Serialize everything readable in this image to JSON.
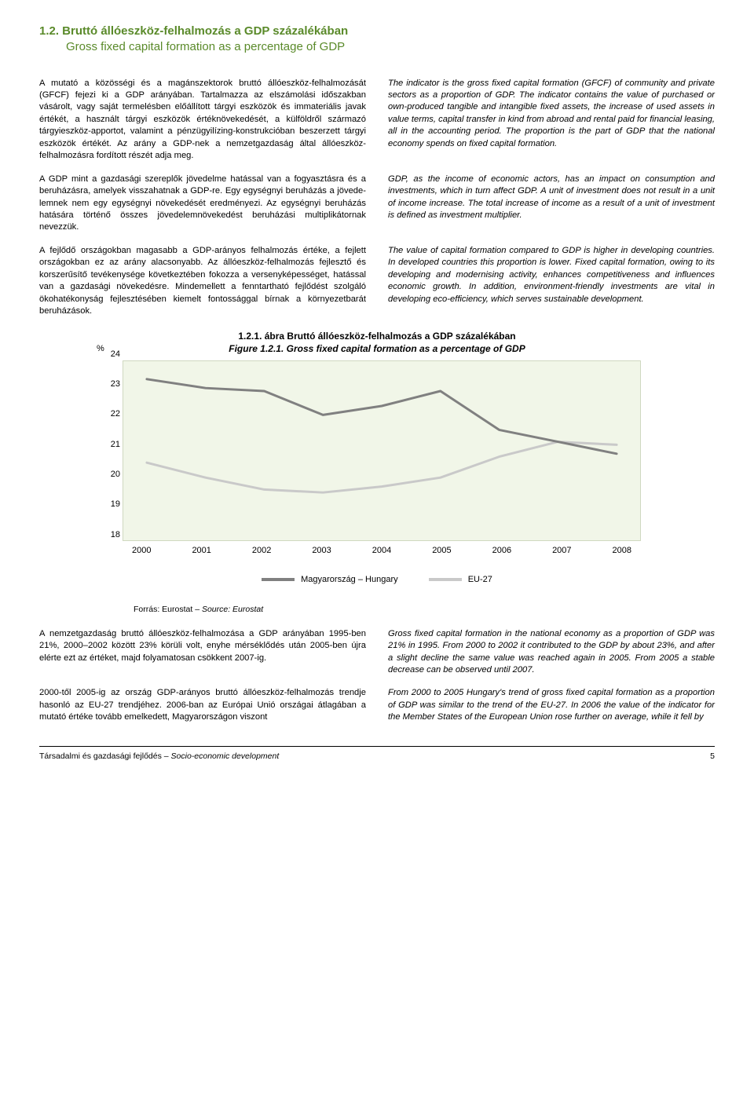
{
  "title": {
    "hu": "1.2.   Bruttó állóeszköz-felhalmozás a GDP százalékában",
    "en": "Gross fixed capital formation as a percentage of GDP"
  },
  "block1": {
    "hu": "A mutató a közösségi és a magánszektorok bruttó álló­eszköz-felhalmozását (GFCF) fejezi ki a GDP arányában. Tartalmazza az elszámolási időszakban vásárolt, vagy saját termelésben előállított tárgyi eszközök és immate­riális javak értékét, a használt tárgyi eszközök értéknöve­kedését, a külföldről származó tárgyieszköz-apportot, valamint a pénzügyilízing-konstrukcióban beszerzett tár­gyi eszközök értékét. Az arány a GDP-nek a nemzetgaz­daság által állóeszköz-felhalmozásra fordított részét adja meg.",
    "en": "The indicator is the gross fixed capital formation (GFCF) of community and private sectors as a proportion of GDP. The indicator contains the value of purchased or own-produced tan­gible and intangible fixed assets, the increase of used assets in value terms, capital transfer in kind from abroad and rental paid for financial leasing, all in the accounting period. The proportion is the part of GDP that the national economy spends on fixed capital formation."
  },
  "block2": {
    "hu": "A GDP mint a gazdasági szereplők jövedelme hatással van a fogyasztásra és a beruházásra, amelyek vissza­hatnak a GDP-re. Egy egységnyi beruházás a jövede­lemnek nem egy egységnyi növekedését eredményezi. Az egységnyi beruházás hatására történő összes jövede­lemnövekedést beruházási multiplikátornak nevezzük.",
    "en": "GDP, as the income of economic actors, has an impact on con­sumption and investments, which in turn affect GDP. A unit of investment does not result in a unit of income increase. The total increase of income as a result of a unit of investment is defined as investment multiplier."
  },
  "block3": {
    "hu": "A fejlődő országokban magasabb a GDP-arányos felhal­mozás értéke, a fejlett országokban ez az arány alacso­nyabb. Az állóeszköz-felhalmozás fejlesztő és korszerűsí­tő tevékenysége következtében fokozza a versenyképes­séget, hatással van a gazdasági növekedésre. Mindemel­lett a fenntartható fejlődést szolgáló ökohatékonyság fej­lesztésében kiemelt fontossággal bírnak a környezetbarát beruházások.",
    "en": "The value of capital formation compared to GDP is higher in developing countries. In developed countries this proportion is lower. Fixed capital formation, owing to its developing and modernising activity, enhances competitiveness and influences economic growth. In addition, environment-friendly investments are vital in developing eco-efficiency, which serves sustainable development."
  },
  "figure": {
    "title_hu": "1.2.1. ábra Bruttó állóeszköz-felhalmozás a GDP százalékában",
    "title_en": "Figure 1.2.1. Gross fixed capital formation as a percentage of GDP",
    "ylabel": "%",
    "ylim": [
      18,
      24
    ],
    "ytick_step": 1,
    "years": [
      "2000",
      "2001",
      "2002",
      "2003",
      "2004",
      "2005",
      "2006",
      "2007",
      "2008"
    ],
    "series": {
      "hungary": {
        "label": "Magyarország – Hungary",
        "color": "#808080",
        "values": [
          23.4,
          23.1,
          23.0,
          22.2,
          22.5,
          23.0,
          21.7,
          21.3,
          20.9
        ]
      },
      "eu27": {
        "label": "EU-27",
        "color": "#c9c9c9",
        "values": [
          20.6,
          20.1,
          19.7,
          19.6,
          19.8,
          20.1,
          20.8,
          21.3,
          21.2
        ]
      }
    },
    "background_color": "#f1f6e8",
    "line_width": 3
  },
  "source": {
    "label": "Forrás: Eurostat – ",
    "en": "Source: Eurostat"
  },
  "block4": {
    "hu": "A nemzetgazdaság bruttó állóeszköz-felhalmozása a GDP arányában 1995-ben 21%, 2000–2002 között 23% körüli volt, enyhe mérséklődés után 2005-ben újra elérte ezt az értéket, majd folyamatosan csök­kent 2007-ig.",
    "en": "Gross fixed capital formation in the national economy as a pro­portion of GDP was 21% in 1995. From 2000 to 2002 it contrib­uted to the GDP by about 23%, and after a slight decline the same value was reached again in 2005. From 2005 a stable decrease can be observed until 2007."
  },
  "block5": {
    "hu": "2000-től 2005-ig az ország GDP-arányos bruttó állóesz­köz-felhalmozás trendje hasonló az EU-27 trendjéhez. 2006-ban az Európai Unió országai átlagában a mutató értéke tovább emelkedett, Magyarországon viszont",
    "en": "From 2000 to 2005 Hungary's trend of gross fixed capital for­mation as a proportion of GDP was similar to the trend of the EU-27. In 2006 the value of the indicator for the Member States of the European Union rose further on average, while it fell by"
  },
  "footer": {
    "left_hu": "Társadalmi és gazdasági fejlődés – ",
    "left_en": "Socio-economic development",
    "page": "5"
  }
}
